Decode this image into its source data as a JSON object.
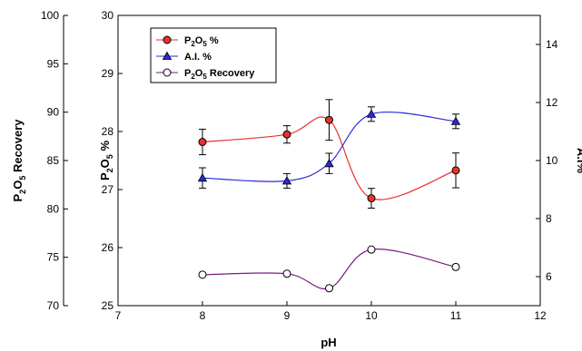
{
  "chart_data": {
    "type": "line",
    "xlabel": "pH",
    "x_ticks": [
      "7",
      "8",
      "9",
      "10",
      "11",
      "12"
    ],
    "xlim": [
      7,
      12
    ],
    "axes": {
      "outer_left": {
        "label": {
          "base": "P",
          "sub": "2",
          "mid": "O",
          "sub2": "5",
          "rest": " Recovery"
        },
        "ylim": [
          70,
          100
        ],
        "ticks": [
          "70",
          "75",
          "80",
          "85",
          "90",
          "95",
          "100"
        ]
      },
      "inner_left": {
        "label": {
          "base": "P",
          "sub": "2",
          "mid": "O",
          "sub2": "5",
          "rest": " %"
        },
        "ylim": [
          25,
          30
        ],
        "ticks": [
          "25",
          "26",
          "27",
          "28",
          "29",
          "30"
        ]
      },
      "right": {
        "label": "A.I%",
        "ylim": [
          5,
          15
        ],
        "ticks": [
          "6",
          "8",
          "10",
          "12",
          "14"
        ]
      }
    },
    "legend": {
      "position": "top-left",
      "entries": [
        {
          "base": "P",
          "sub": "2",
          "mid": "O",
          "sub2": "5",
          "rest": " %"
        },
        {
          "text": "A.I. %"
        },
        {
          "base": "P",
          "sub": "2",
          "mid": "O",
          "sub2": "5",
          "rest": " Recovery"
        }
      ]
    },
    "series": [
      {
        "axis": "inner_left",
        "color": "#e8322c",
        "marker": "circle-filled-red",
        "x": [
          8,
          9,
          9.5,
          10,
          11
        ],
        "y": [
          27.82,
          27.95,
          28.2,
          26.85,
          27.33
        ],
        "err": [
          0.22,
          0.15,
          0.35,
          0.17,
          0.3
        ]
      },
      {
        "axis": "right",
        "color": "#2a2ad8",
        "marker": "triangle-filled-blue",
        "x": [
          8,
          9,
          9.5,
          10,
          11
        ],
        "y": [
          9.4,
          9.3,
          9.9,
          11.6,
          11.35
        ],
        "err": [
          0.35,
          0.25,
          0.35,
          0.25,
          0.25
        ]
      },
      {
        "axis": "outer_left",
        "color": "#7a1a80",
        "marker": "circle-open",
        "x": [
          8,
          9,
          9.5,
          10,
          11
        ],
        "y": [
          73.2,
          73.3,
          71.8,
          75.8,
          74.0
        ],
        "err": null
      }
    ]
  }
}
